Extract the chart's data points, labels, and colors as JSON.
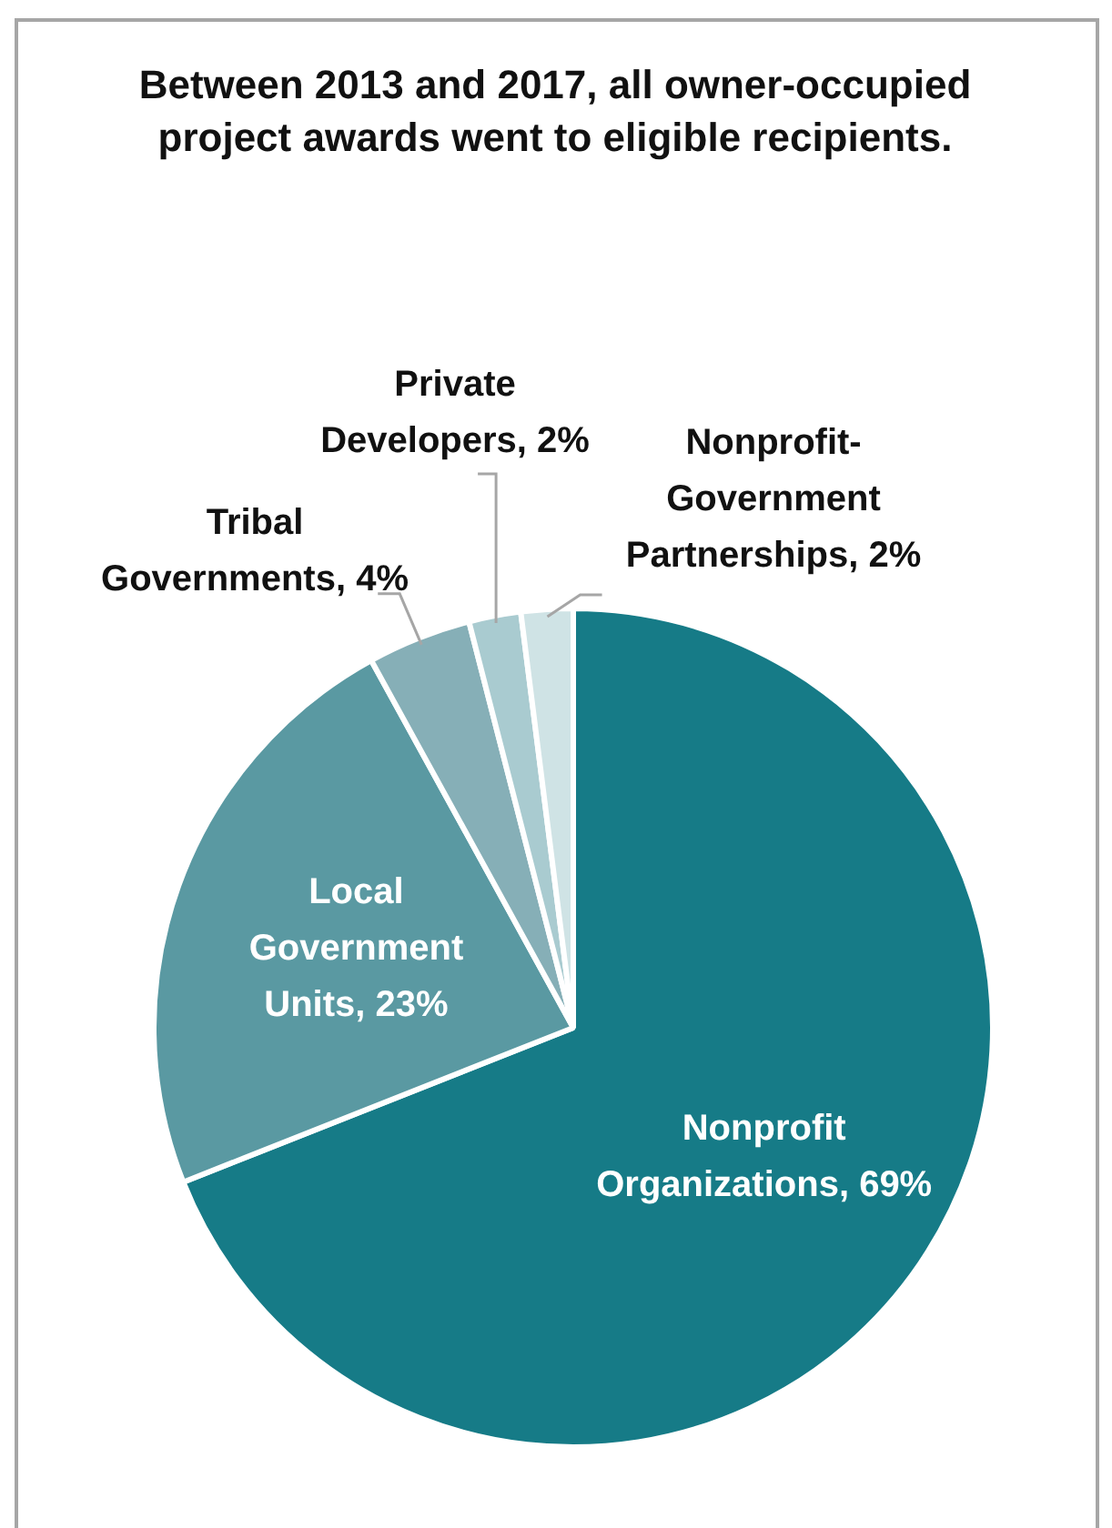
{
  "chart_data": {
    "type": "pie",
    "title": "Between 2013 and 2017, all owner-occupied project awards went to eligible recipients.",
    "categories": [
      "Nonprofit Organizations",
      "Local Government Units",
      "Tribal Governments",
      "Private Developers",
      "Nonprofit-Government Partnerships"
    ],
    "values": [
      69,
      23,
      4,
      2,
      2
    ],
    "value_labels": [
      "69%",
      "23%",
      "4%",
      "2%",
      "2%"
    ],
    "colors": [
      "#167b87",
      "#5a99a2",
      "#86afb7",
      "#a9cbd0",
      "#cfe3e5"
    ],
    "legend": false
  }
}
